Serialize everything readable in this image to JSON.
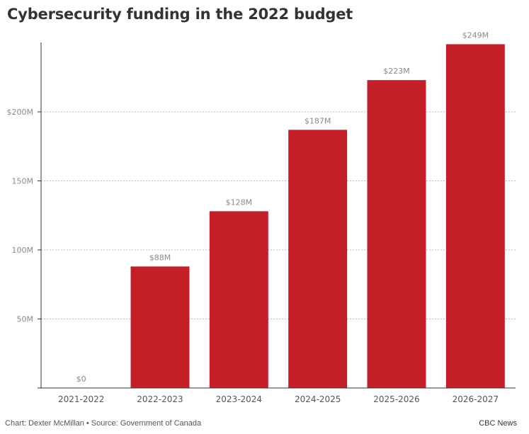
{
  "chart_data": {
    "type": "bar",
    "title": "Cybersecurity funding in the 2022 budget",
    "xlabel": "",
    "ylabel": "",
    "categories": [
      "2021-2022",
      "2022-2023",
      "2023-2024",
      "2024-2025",
      "2025-2026",
      "2026-2027"
    ],
    "values": [
      0,
      88,
      128,
      187,
      223,
      249
    ],
    "value_unit": "millions CAD",
    "data_labels": [
      "$0",
      "$88M",
      "$128M",
      "$187M",
      "$223M",
      "$249M"
    ],
    "ylim": [
      0,
      249
    ],
    "yticks": [
      {
        "value": 50,
        "label": "50M"
      },
      {
        "value": 100,
        "label": "100M"
      },
      {
        "value": 150,
        "label": "150M"
      },
      {
        "value": 200,
        "label": "$200M"
      }
    ],
    "grid": true,
    "grid_style": "dotted",
    "legend": "none",
    "bar_color": "#c41f28"
  },
  "footer": {
    "credit": "Chart: Dexter McMillan • Source: Government of Canada",
    "brand": "CBC News"
  }
}
